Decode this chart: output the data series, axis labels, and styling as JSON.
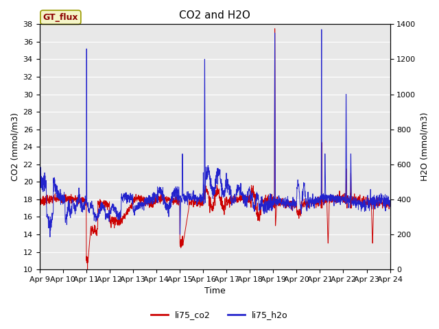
{
  "title": "CO2 and H2O",
  "xlabel": "Time",
  "ylabel_left": "CO2 (mmol/m3)",
  "ylabel_right": "H2O (mmol/m3)",
  "legend_label": "GT_flux",
  "series": [
    "li75_co2",
    "li75_h2o"
  ],
  "colors": [
    "#cc0000",
    "#2222cc"
  ],
  "ylim_left": [
    10,
    38
  ],
  "ylim_right": [
    0,
    1400
  ],
  "yticks_left": [
    10,
    12,
    14,
    16,
    18,
    20,
    22,
    24,
    26,
    28,
    30,
    32,
    34,
    36,
    38
  ],
  "yticks_right": [
    0,
    200,
    400,
    600,
    800,
    1000,
    1200,
    1400
  ],
  "xtick_labels": [
    "Apr 9",
    "Apr 10",
    "Apr 11",
    "Apr 12",
    "Apr 13",
    "Apr 14",
    "Apr 15",
    "Apr 16",
    "Apr 17",
    "Apr 18",
    "Apr 19",
    "Apr 20",
    "Apr 21",
    "Apr 22",
    "Apr 23",
    "Apr 24"
  ],
  "bg_color": "#e8e8e8",
  "title_fontsize": 11,
  "axis_fontsize": 9,
  "tick_fontsize": 8
}
